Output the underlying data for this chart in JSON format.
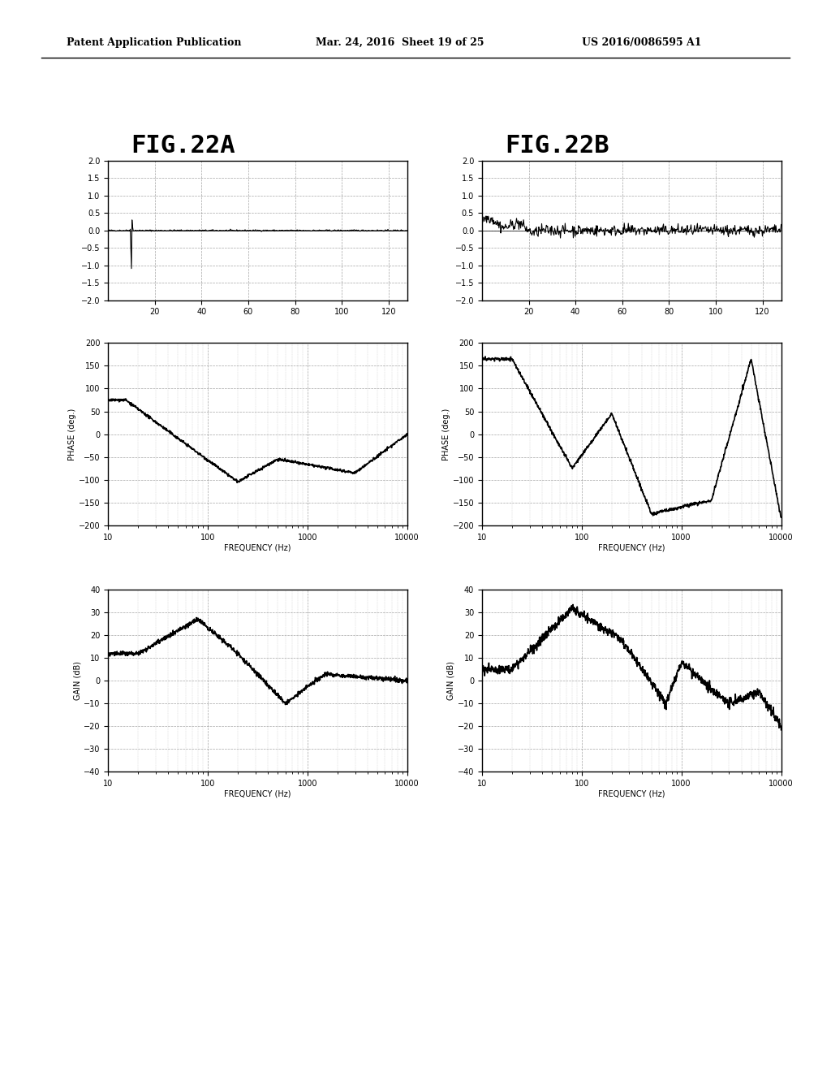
{
  "header_left": "Patent Application Publication",
  "header_mid": "Mar. 24, 2016  Sheet 19 of 25",
  "header_right": "US 2016/0086595 A1",
  "fig_label_A": "FIG.22A",
  "fig_label_B": "FIG.22B",
  "bg_color": "#ffffff",
  "text_color": "#000000",
  "line_color": "#000000",
  "top_plot": {
    "xlim": [
      0,
      128
    ],
    "ylim": [
      -2,
      2
    ],
    "yticks": [
      -2,
      -1.5,
      -1,
      -0.5,
      0,
      0.5,
      1,
      1.5,
      2
    ],
    "xticks": [
      20,
      40,
      60,
      80,
      100,
      120
    ]
  },
  "phase_plot": {
    "xlim_log": [
      10,
      10000
    ],
    "ylim": [
      -200,
      200
    ],
    "yticks": [
      -200,
      -150,
      -100,
      -50,
      0,
      50,
      100,
      150,
      200
    ],
    "ylabel": "PHASE (deg.)",
    "xlabel": "FREQUENCY (Hz)"
  },
  "gain_plot": {
    "xlim_log": [
      10,
      10000
    ],
    "ylim": [
      -40,
      40
    ],
    "yticks": [
      -40,
      -30,
      -20,
      -10,
      0,
      10,
      20,
      30,
      40
    ],
    "ylabel": "GAIN (dB)",
    "xlabel": "FREQUENCY (Hz)"
  }
}
